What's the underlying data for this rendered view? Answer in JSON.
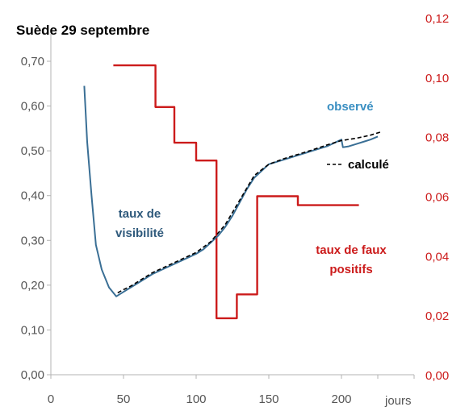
{
  "chart_data": {
    "type": "line",
    "title": "Suède 29 septembre",
    "xlabel": "jours",
    "xlim": [
      0,
      250
    ],
    "x_ticks": [
      "0",
      "50",
      "100",
      "150",
      "200"
    ],
    "y_left": {
      "ylim": [
        0,
        0.7
      ],
      "ticks": [
        "0,00",
        "0,10",
        "0,20",
        "0,30",
        "0,40",
        "0,50",
        "0,60",
        "0,70"
      ],
      "color": "#555555"
    },
    "y_right": {
      "ylim": [
        0,
        0.12
      ],
      "ticks": [
        "0,00",
        "0,02",
        "0,04",
        "0,06",
        "0,08",
        "0,10",
        "0,12"
      ],
      "color": "#cc1b1b"
    },
    "annotations": {
      "observed": "observé",
      "computed": "calculé",
      "visibility_line1": "taux de",
      "visibility_line2": "visibilité",
      "false_pos_line1": "taux de faux",
      "false_pos_line2": "positifs"
    },
    "series": [
      {
        "key": "observe",
        "axis": "left",
        "color": "#3a6f95",
        "style": "solid",
        "x": [
          23,
          25,
          28,
          31,
          35,
          40,
          45,
          50,
          55,
          60,
          70,
          80,
          90,
          100,
          105,
          110,
          115,
          120,
          125,
          130,
          135,
          140,
          145,
          150,
          160,
          170,
          180,
          190,
          200,
          201,
          205,
          210,
          215,
          220,
          225
        ],
        "y": [
          0.645,
          0.52,
          0.4,
          0.29,
          0.235,
          0.195,
          0.175,
          0.185,
          0.195,
          0.205,
          0.225,
          0.24,
          0.255,
          0.27,
          0.28,
          0.295,
          0.31,
          0.33,
          0.355,
          0.385,
          0.415,
          0.44,
          0.455,
          0.47,
          0.48,
          0.49,
          0.5,
          0.51,
          0.525,
          0.508,
          0.51,
          0.515,
          0.52,
          0.525,
          0.532
        ]
      },
      {
        "key": "calcule",
        "axis": "left",
        "color": "#000000",
        "style": "dashed",
        "x": [
          46,
          50,
          55,
          60,
          70,
          80,
          90,
          100,
          110,
          120,
          130,
          140,
          150,
          160,
          170,
          180,
          190,
          200,
          210,
          220,
          227
        ],
        "y": [
          0.183,
          0.19,
          0.198,
          0.208,
          0.228,
          0.243,
          0.258,
          0.273,
          0.297,
          0.335,
          0.39,
          0.445,
          0.47,
          0.482,
          0.492,
          0.502,
          0.513,
          0.523,
          0.528,
          0.535,
          0.542
        ]
      },
      {
        "key": "faux_positifs",
        "axis": "right",
        "color": "#cc1b1b",
        "style": "step",
        "x": [
          43,
          72,
          72,
          85,
          85,
          100,
          100,
          114,
          114,
          128,
          128,
          142,
          142,
          170,
          170,
          212
        ],
        "y": [
          0.104,
          0.104,
          0.09,
          0.09,
          0.078,
          0.078,
          0.072,
          0.072,
          0.019,
          0.019,
          0.027,
          0.027,
          0.06,
          0.06,
          0.057,
          0.057
        ]
      }
    ]
  }
}
